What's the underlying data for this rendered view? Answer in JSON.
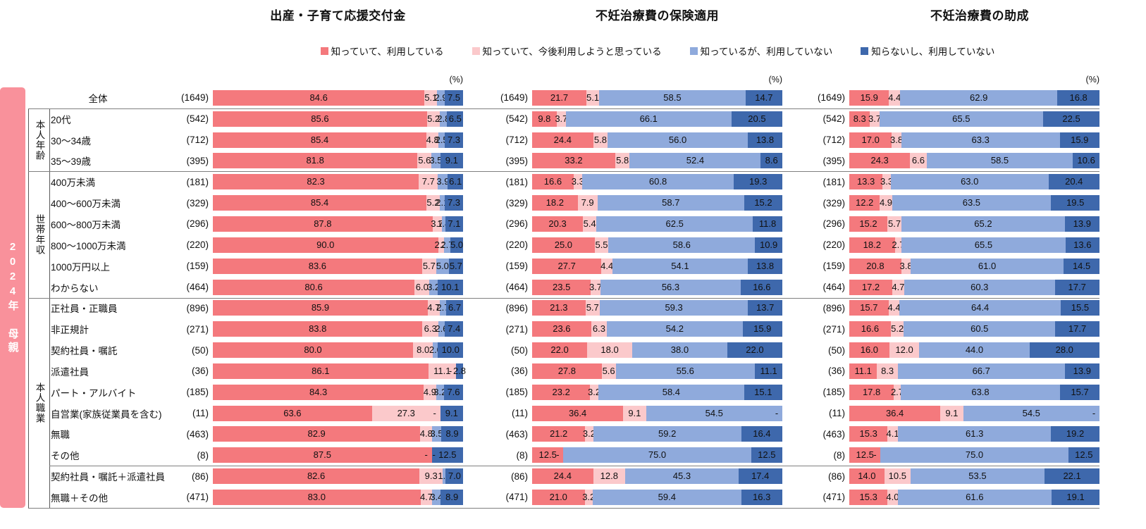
{
  "sidebar": {
    "label": "2024年 母親"
  },
  "panels": [
    {
      "title": "出産・子育て応援交付金",
      "unit": "(%)"
    },
    {
      "title": "不妊治療費の保険適用",
      "unit": "(%)"
    },
    {
      "title": "不妊治療費の助成",
      "unit": "(%)"
    }
  ],
  "legend": [
    {
      "label": "知っていて、利用している",
      "color": "#F4797D"
    },
    {
      "label": "知っていて、今後利用しようと思っている",
      "color": "#FBC9CB"
    },
    {
      "label": "知っているが、利用していない",
      "color": "#8FAADC"
    },
    {
      "label": "知らないし、利用していない",
      "color": "#3E68AC"
    }
  ],
  "chart_data": {
    "type": "bar",
    "subtype": "horizontal-stacked-100",
    "unit": "%",
    "panels": [
      "出産・子育て応援交付金",
      "不妊治療費の保険適用",
      "不妊治療費の助成"
    ],
    "series_names": [
      "知っていて、利用している",
      "知っていて、今後利用しようと思っている",
      "知っているが、利用していない",
      "知らないし、利用していない"
    ],
    "series_colors": [
      "#F4797D",
      "#FBC9CB",
      "#8FAADC",
      "#3E68AC"
    ],
    "zero_display": "-",
    "groups": [
      {
        "label": "本人年齢",
        "start": 1,
        "end": 3
      },
      {
        "label": "世帯年収",
        "start": 4,
        "end": 9
      },
      {
        "label": "本人職業",
        "start": 10,
        "end": 19
      }
    ],
    "subgroup_separator_row": 18,
    "rows": [
      {
        "label": "全体",
        "n": "(1649)",
        "total": true,
        "values": [
          [
            84.6,
            5.1,
            2.9,
            7.5
          ],
          [
            21.7,
            5.1,
            58.5,
            14.7
          ],
          [
            15.9,
            4.4,
            62.9,
            16.8
          ]
        ]
      },
      {
        "label": "20代",
        "n": "(542)",
        "values": [
          [
            85.6,
            5.2,
            2.8,
            6.5
          ],
          [
            9.8,
            3.7,
            66.1,
            20.5
          ],
          [
            8.3,
            3.7,
            65.5,
            22.5
          ]
        ]
      },
      {
        "label": "30〜34歳",
        "n": "(712)",
        "values": [
          [
            85.4,
            4.8,
            2.5,
            7.3
          ],
          [
            24.4,
            5.8,
            56.0,
            13.8
          ],
          [
            17.0,
            3.8,
            63.3,
            15.9
          ]
        ]
      },
      {
        "label": "35〜39歳",
        "n": "(395)",
        "values": [
          [
            81.8,
            5.6,
            3.5,
            9.1
          ],
          [
            33.2,
            5.8,
            52.4,
            8.6
          ],
          [
            24.3,
            6.6,
            58.5,
            10.6
          ]
        ]
      },
      {
        "label": "400万未満",
        "n": "(181)",
        "values": [
          [
            82.3,
            7.7,
            3.9,
            6.1
          ],
          [
            16.6,
            3.3,
            60.8,
            19.3
          ],
          [
            13.3,
            3.3,
            63.0,
            20.4
          ]
        ]
      },
      {
        "label": "400〜600万未満",
        "n": "(329)",
        "values": [
          [
            85.4,
            5.2,
            2.1,
            7.3
          ],
          [
            18.2,
            7.9,
            58.7,
            15.2
          ],
          [
            12.2,
            4.9,
            63.5,
            19.5
          ]
        ]
      },
      {
        "label": "600〜800万未満",
        "n": "(296)",
        "values": [
          [
            87.8,
            3.7,
            1.4,
            7.1
          ],
          [
            20.3,
            5.4,
            62.5,
            11.8
          ],
          [
            15.2,
            5.7,
            65.2,
            13.9
          ]
        ]
      },
      {
        "label": "800〜1000万未満",
        "n": "(220)",
        "values": [
          [
            90.0,
            2.3,
            2.7,
            5.0
          ],
          [
            25.0,
            5.5,
            58.6,
            10.9
          ],
          [
            18.2,
            2.7,
            65.5,
            13.6
          ]
        ]
      },
      {
        "label": "1000万円以上",
        "n": "(159)",
        "values": [
          [
            83.6,
            5.7,
            5.0,
            5.7
          ],
          [
            27.7,
            4.4,
            54.1,
            13.8
          ],
          [
            20.8,
            3.8,
            61.0,
            14.5
          ]
        ]
      },
      {
        "label": "わからない",
        "n": "(464)",
        "values": [
          [
            80.6,
            6.0,
            3.2,
            10.1
          ],
          [
            23.5,
            3.7,
            56.3,
            16.6
          ],
          [
            17.2,
            4.7,
            60.3,
            17.7
          ]
        ]
      },
      {
        "label": "正社員・正職員",
        "n": "(896)",
        "values": [
          [
            85.9,
            4.7,
            2.7,
            6.7
          ],
          [
            21.3,
            5.7,
            59.3,
            13.7
          ],
          [
            15.7,
            4.4,
            64.4,
            15.5
          ]
        ]
      },
      {
        "label": "非正規計",
        "n": "(271)",
        "values": [
          [
            83.8,
            6.3,
            2.6,
            7.4
          ],
          [
            23.6,
            6.3,
            54.2,
            15.9
          ],
          [
            16.6,
            5.2,
            60.5,
            17.7
          ]
        ]
      },
      {
        "label": "契約社員・嘱託",
        "n": "(50)",
        "values": [
          [
            80.0,
            8.0,
            2.0,
            10.0
          ],
          [
            22.0,
            18.0,
            38.0,
            22.0
          ],
          [
            16.0,
            12.0,
            44.0,
            28.0
          ]
        ]
      },
      {
        "label": "派遣社員",
        "n": "(36)",
        "values": [
          [
            86.1,
            11.1,
            0,
            2.8
          ],
          [
            27.8,
            5.6,
            55.6,
            11.1
          ],
          [
            11.1,
            8.3,
            66.7,
            13.9
          ]
        ]
      },
      {
        "label": "パート・アルバイト",
        "n": "(185)",
        "values": [
          [
            84.3,
            4.9,
            3.2,
            7.6
          ],
          [
            23.2,
            3.2,
            58.4,
            15.1
          ],
          [
            17.8,
            2.7,
            63.8,
            15.7
          ]
        ]
      },
      {
        "label": "自営業(家族従業員を含む)",
        "n": "(11)",
        "values": [
          [
            63.6,
            27.3,
            0,
            9.1
          ],
          [
            36.4,
            9.1,
            54.5,
            0
          ],
          [
            36.4,
            9.1,
            54.5,
            0
          ]
        ]
      },
      {
        "label": "無職",
        "n": "(463)",
        "values": [
          [
            82.9,
            4.8,
            3.5,
            8.9
          ],
          [
            21.2,
            3.2,
            59.2,
            16.4
          ],
          [
            15.3,
            4.1,
            61.3,
            19.2
          ]
        ]
      },
      {
        "label": "その他",
        "n": "(8)",
        "values": [
          [
            87.5,
            0,
            0,
            12.5
          ],
          [
            12.5,
            0,
            75.0,
            12.5
          ],
          [
            12.5,
            0,
            75.0,
            12.5
          ]
        ]
      },
      {
        "label": "契約社員・嘱託＋派遣社員",
        "n": "(86)",
        "values": [
          [
            82.6,
            9.3,
            1.2,
            7.0
          ],
          [
            24.4,
            12.8,
            45.3,
            17.4
          ],
          [
            14.0,
            10.5,
            53.5,
            22.1
          ]
        ]
      },
      {
        "label": "無職＋その他",
        "n": "(471)",
        "values": [
          [
            83.0,
            4.7,
            3.4,
            8.9
          ],
          [
            21.0,
            3.2,
            59.4,
            16.3
          ],
          [
            15.3,
            4.0,
            61.6,
            19.1
          ]
        ]
      }
    ]
  }
}
